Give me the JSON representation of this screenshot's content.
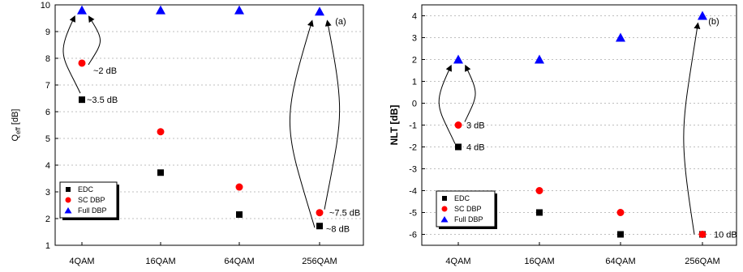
{
  "chart_data": [
    {
      "type": "scatter",
      "panel_label": "(a)",
      "categories": [
        "4QAM",
        "16QAM",
        "64QAM",
        "256QAM"
      ],
      "ylabel_main": "Q",
      "ylabel_sub": "eff",
      "ylabel_unit": " [dB]",
      "ylim": [
        1,
        10
      ],
      "yticks": [
        "1",
        "2",
        "3",
        "4",
        "5",
        "6",
        "7",
        "8",
        "9",
        "10"
      ],
      "grid": "horizontal dotted",
      "legend_position": "bottom-left",
      "series": [
        {
          "name": "EDC",
          "marker": "square",
          "color": "#000000",
          "values": [
            6.45,
            3.72,
            2.15,
            1.72
          ]
        },
        {
          "name": "SC DBP",
          "marker": "circle",
          "color": "#ff0000",
          "values": [
            7.82,
            5.25,
            3.18,
            2.22
          ]
        },
        {
          "name": "Full DBP",
          "marker": "triangle",
          "color": "#0000ff",
          "values": [
            9.8,
            9.8,
            9.8,
            9.75
          ]
        }
      ],
      "annotations": [
        {
          "text": "~2 dB",
          "category": "4QAM",
          "y": 7.55
        },
        {
          "text": "~3.5 dB",
          "category": "4QAM",
          "y": 6.45
        },
        {
          "text": "~7.5 dB",
          "category": "256QAM",
          "y": 2.22
        },
        {
          "text": "~8 dB",
          "category": "256QAM",
          "y": 1.62
        }
      ]
    },
    {
      "type": "scatter",
      "panel_label": "(b)",
      "categories": [
        "4QAM",
        "16QAM",
        "64QAM",
        "256QAM"
      ],
      "ylabel": "NLT [dB]",
      "ylim": [
        -6.5,
        4.5
      ],
      "yticks": [
        "-6",
        "-5",
        "-4",
        "-3",
        "-2",
        "-1",
        "0",
        "1",
        "2",
        "3",
        "4"
      ],
      "grid": "horizontal dotted",
      "legend_position": "bottom-left",
      "series": [
        {
          "name": "EDC",
          "marker": "square",
          "color": "#000000",
          "values": [
            -2,
            -5,
            -6,
            -6
          ]
        },
        {
          "name": "SC DBP",
          "marker": "circle",
          "color": "#ff0000",
          "values": [
            -1,
            -4,
            -5,
            -6
          ]
        },
        {
          "name": "Full DBP",
          "marker": "triangle",
          "color": "#0000ff",
          "values": [
            2,
            2,
            3,
            4
          ]
        }
      ],
      "annotations": [
        {
          "text": "3 dB",
          "category": "4QAM",
          "y": -1
        },
        {
          "text": "4 dB",
          "category": "4QAM",
          "y": -2
        },
        {
          "text": "10 dB",
          "category": "256QAM",
          "y": -6
        }
      ]
    }
  ]
}
